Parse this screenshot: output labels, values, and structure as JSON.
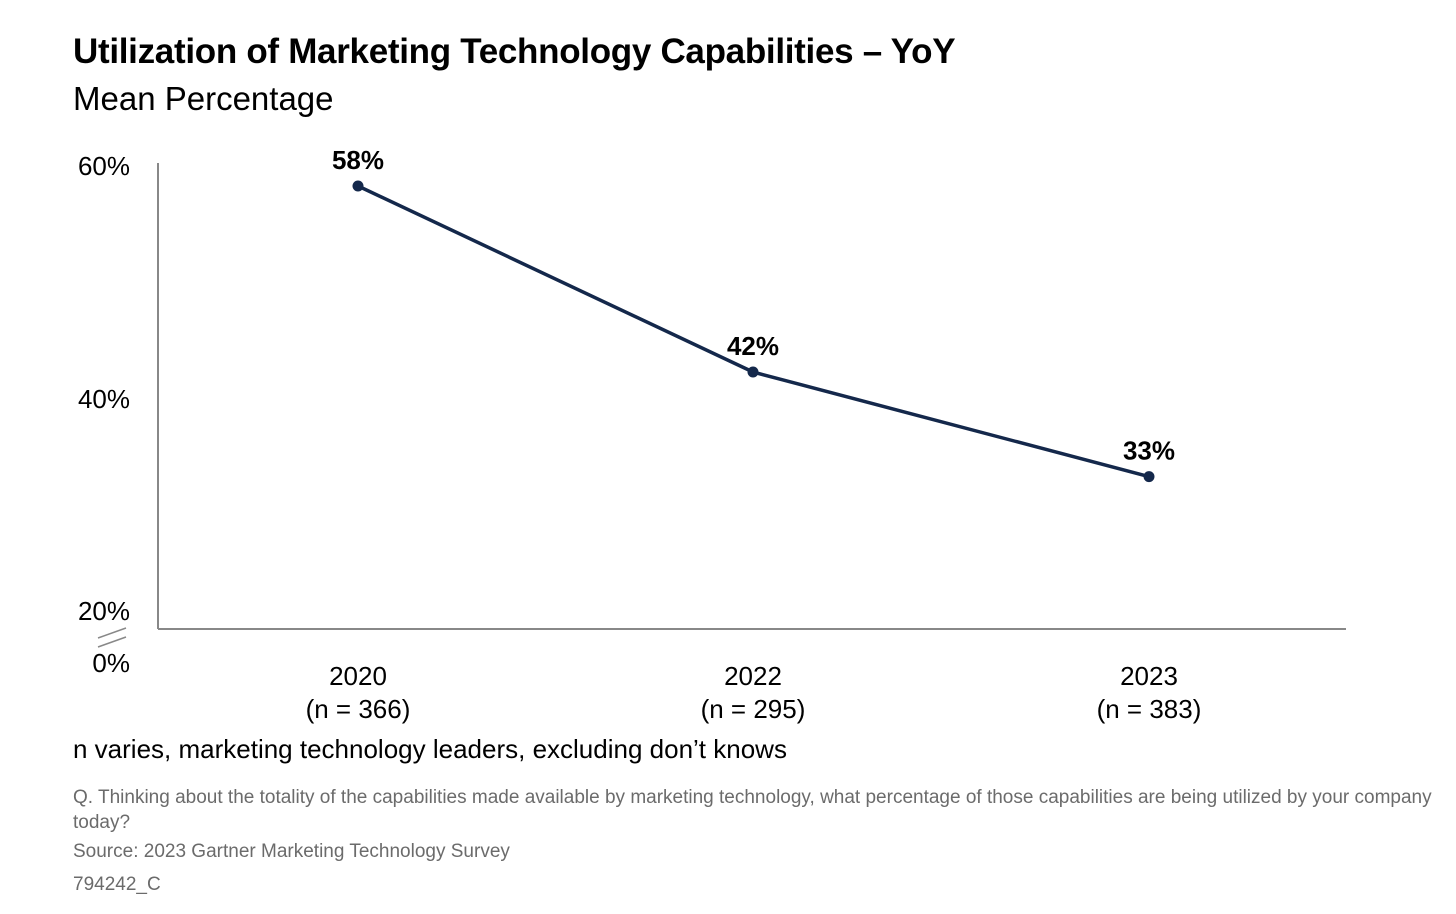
{
  "title": "Utilization of Marketing Technology Capabilities – YoY",
  "subtitle": "Mean Percentage",
  "chart_data": {
    "type": "line",
    "title": "Utilization of Marketing Technology Capabilities – YoY",
    "subtitle": "Mean Percentage",
    "xlabel": "",
    "ylabel": "",
    "categories": [
      "2020",
      "2022",
      "2023"
    ],
    "category_sublabels": [
      "(n = 366)",
      "(n = 295)",
      "(n = 383)"
    ],
    "series": [
      {
        "values": [
          58,
          42,
          33
        ],
        "data_labels": [
          "58%",
          "42%",
          "33%"
        ]
      }
    ],
    "y_ticks": [
      60,
      40,
      20,
      0
    ],
    "y_tick_labels": [
      "60%",
      "40%",
      "20%",
      "0%"
    ],
    "ylim": [
      0,
      60
    ],
    "y_axis_break": "between 0% and 20%",
    "grid": false,
    "legend": "none",
    "colors": {
      "line": "#14284b",
      "axis": "#888888",
      "text": "#000000"
    }
  },
  "footer": {
    "sample_note": "n varies, marketing technology leaders, excluding don’t knows",
    "question": "Q. Thinking about the totality of the capabilities made available by marketing technology, what percentage of those capabilities are being utilized by your company today?",
    "source": "Source: 2023 Gartner Marketing Technology Survey",
    "doc_id": "794242_C"
  }
}
